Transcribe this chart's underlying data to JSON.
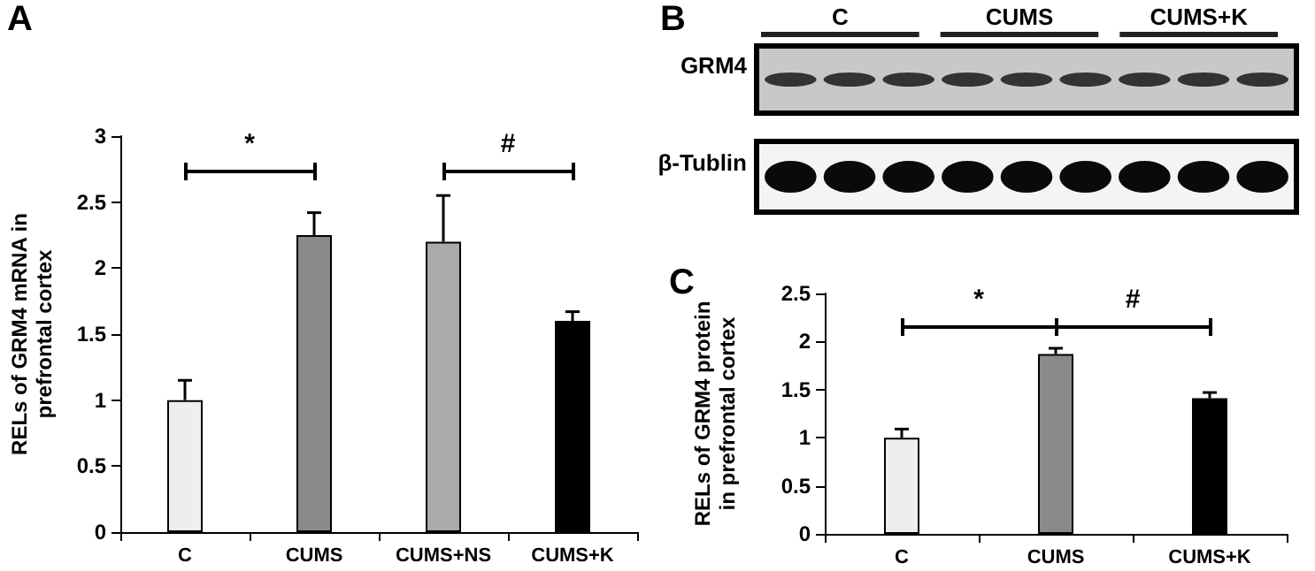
{
  "chart_data": [
    {
      "type": "bar",
      "title": "A",
      "ylabel": "RELs of GRM4 mRNA in prefrontal cortex",
      "categories": [
        "C",
        "CUMS",
        "CUMS+NS",
        "CUMS+K"
      ],
      "values": [
        1.0,
        2.25,
        2.2,
        1.6
      ],
      "errors": [
        0.15,
        0.17,
        0.35,
        0.07
      ],
      "colors": [
        "#eeeeee",
        "#8a8a8a",
        "#aaaaaa",
        "#000000"
      ],
      "ylim": [
        0,
        3
      ],
      "yticks": [
        0,
        0.5,
        1,
        1.5,
        2,
        2.5,
        3
      ],
      "grid": false,
      "annotations": [
        "*",
        "#"
      ]
    },
    {
      "type": "other",
      "title": "B",
      "categories": [
        "C",
        "CUMS",
        "CUMS+K"
      ],
      "y_categories": [
        "GRM4",
        "β-Tublin"
      ]
    },
    {
      "type": "bar",
      "title": "C",
      "ylabel": "RELs of GRM4 protein in prefrontal cortex",
      "categories": [
        "C",
        "CUMS",
        "CUMS+K"
      ],
      "values": [
        1.0,
        1.87,
        1.41
      ],
      "errors": [
        0.09,
        0.06,
        0.06
      ],
      "colors": [
        "#eeeeee",
        "#8a8a8a",
        "#000000"
      ],
      "ylim": [
        0,
        2.5
      ],
      "yticks": [
        0,
        0.5,
        1,
        1.5,
        2,
        2.5
      ],
      "grid": false,
      "annotations": [
        "*",
        "#"
      ]
    }
  ]
}
